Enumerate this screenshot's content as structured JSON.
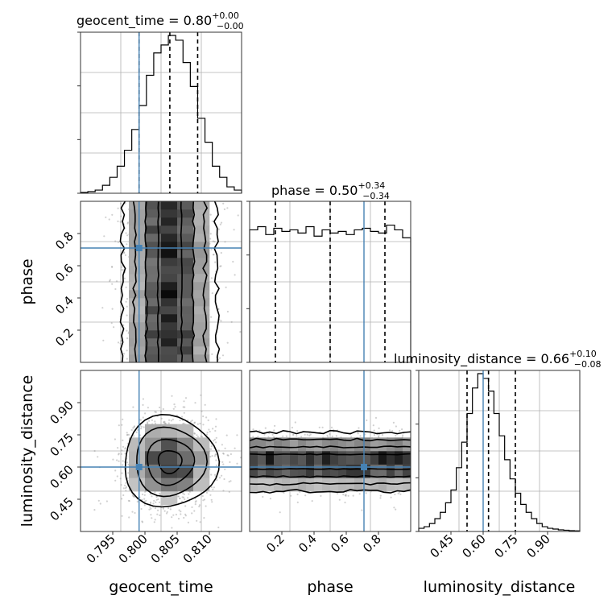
{
  "figure": {
    "type": "corner-plot",
    "truth_color": "#4682b4",
    "parameters": [
      {
        "name": "geocent_time",
        "label": "geocent_time",
        "median": "0.80",
        "plus": "+0.00",
        "minus": "−0.00"
      },
      {
        "name": "phase",
        "label": "phase",
        "median": "0.50",
        "plus": "+0.34",
        "minus": "−0.34"
      },
      {
        "name": "luminosity_distance",
        "label": "luminosity_distance",
        "median": "0.66",
        "plus": "+0.10",
        "minus": "−0.08"
      }
    ]
  },
  "chart_data": [
    {
      "type": "histogram",
      "panel": "geocent_time-marginal",
      "title_prefix": "geocent_time = 0.80",
      "title_sup": "+0.00",
      "title_sub": "−0.00",
      "xlim": [
        0.7905,
        0.8125
      ],
      "bins": [
        0.7905,
        0.7915,
        0.7925,
        0.7935,
        0.7945,
        0.7955,
        0.7965,
        0.7975,
        0.7985,
        0.7995,
        0.8005,
        0.8015,
        0.8025,
        0.8035,
        0.8045,
        0.8055,
        0.8065,
        0.8075,
        0.8085,
        0.8095,
        0.8105,
        0.8115
      ],
      "counts": [
        0.005,
        0.01,
        0.02,
        0.05,
        0.1,
        0.17,
        0.27,
        0.4,
        0.55,
        0.74,
        0.88,
        0.93,
        0.99,
        0.96,
        0.82,
        0.67,
        0.47,
        0.32,
        0.17,
        0.1,
        0.04,
        0.02
      ],
      "quantiles": [
        0.7985,
        0.8027,
        0.8065
      ],
      "truth": 0.7985
    },
    {
      "type": "histogram",
      "panel": "phase-marginal",
      "title_prefix": "phase = 0.50",
      "title_sup": "+0.34",
      "title_sub": "−0.34",
      "xlim": [
        0.0,
        1.0
      ],
      "bins": [
        0.0,
        0.05,
        0.1,
        0.15,
        0.2,
        0.25,
        0.3,
        0.35,
        0.4,
        0.45,
        0.5,
        0.55,
        0.6,
        0.65,
        0.7,
        0.75,
        0.8,
        0.85,
        0.9,
        0.95
      ],
      "counts": [
        0.84,
        0.86,
        0.81,
        0.85,
        0.83,
        0.84,
        0.82,
        0.86,
        0.8,
        0.84,
        0.82,
        0.83,
        0.81,
        0.84,
        0.85,
        0.83,
        0.82,
        0.87,
        0.84,
        0.79
      ],
      "quantiles": [
        0.16,
        0.5,
        0.84
      ],
      "truth": 0.71
    },
    {
      "type": "histogram",
      "panel": "luminosity-distance-marginal",
      "title_prefix": "luminosity_distance = 0.66",
      "title_sup": "+0.10",
      "title_sub": "−0.08",
      "xlim": [
        0.4,
        1.0
      ],
      "bins": [
        0.4,
        0.42,
        0.44,
        0.46,
        0.48,
        0.5,
        0.52,
        0.54,
        0.56,
        0.58,
        0.6,
        0.62,
        0.64,
        0.66,
        0.68,
        0.7,
        0.72,
        0.74,
        0.76,
        0.78,
        0.8,
        0.82,
        0.84,
        0.86,
        0.88,
        0.9,
        0.92,
        0.94,
        0.96,
        0.98
      ],
      "counts": [
        0.02,
        0.03,
        0.05,
        0.08,
        0.12,
        0.18,
        0.26,
        0.4,
        0.56,
        0.74,
        0.9,
        0.99,
        0.96,
        0.88,
        0.74,
        0.6,
        0.45,
        0.33,
        0.24,
        0.17,
        0.12,
        0.08,
        0.05,
        0.03,
        0.02,
        0.015,
        0.01,
        0.008,
        0.005,
        0.004
      ],
      "quantiles": [
        0.58,
        0.66,
        0.76
      ],
      "truth": 0.64
    },
    {
      "type": "scatter-contour",
      "panel": "phase-vs-geocent_time",
      "xlabel": "geocent_time",
      "ylabel": "phase",
      "xlim": [
        0.7905,
        0.8125
      ],
      "ylim": [
        0.0,
        1.0
      ],
      "center": [
        0.8027,
        0.5
      ],
      "sigma": [
        0.0032,
        0.29
      ],
      "truth": [
        0.7985,
        0.71
      ],
      "xticks": [
        "0.795",
        "0.800",
        "0.805",
        "0.810"
      ],
      "yticks": [
        "0.2",
        "0.4",
        "0.6",
        "0.8"
      ]
    },
    {
      "type": "scatter-contour",
      "panel": "luminosity_distance-vs-geocent_time",
      "xlabel": "geocent_time",
      "ylabel": "luminosity_distance",
      "xlim": [
        0.7905,
        0.8125
      ],
      "ylim": [
        0.4,
        1.0
      ],
      "center": [
        0.8027,
        0.66
      ],
      "sigma": [
        0.0032,
        0.085
      ],
      "truth": [
        0.7985,
        0.64
      ],
      "xticks": [
        "0.795",
        "0.800",
        "0.805",
        "0.810"
      ],
      "yticks": [
        "0.45",
        "0.60",
        "0.75",
        "0.90"
      ]
    },
    {
      "type": "scatter-contour",
      "panel": "luminosity_distance-vs-phase",
      "xlabel": "phase",
      "ylabel": "luminosity_distance",
      "xlim": [
        0.0,
        1.0
      ],
      "ylim": [
        0.4,
        1.0
      ],
      "center": [
        0.5,
        0.66
      ],
      "sigma": [
        0.29,
        0.055
      ],
      "truth": [
        0.71,
        0.64
      ],
      "xticks": [
        "0.2",
        "0.4",
        "0.6",
        "0.8"
      ],
      "yticks": [
        "0.45",
        "0.60",
        "0.75",
        "0.90"
      ]
    }
  ]
}
